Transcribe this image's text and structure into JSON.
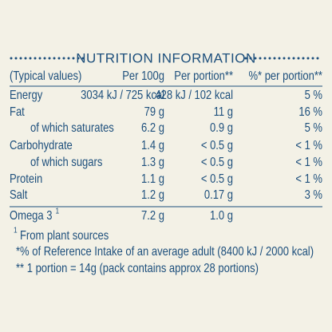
{
  "title": "NUTRITION INFORMATION",
  "table": {
    "header": [
      "(Typical values)",
      "Per 100g",
      "Per portion**",
      "%* per portion**"
    ],
    "rows": [
      [
        "Energy",
        "3034 kJ / 725 kcal",
        "428 kJ / 102 kcal",
        "5 %"
      ],
      [
        "Fat",
        "79 g",
        "11 g",
        "16 %"
      ],
      [
        "of which saturates",
        "6.2 g",
        "0.9 g",
        "5 %"
      ],
      [
        "Carbohydrate",
        "1.4 g",
        "< 0.5 g",
        "< 1 %"
      ],
      [
        "of which sugars",
        "1.3 g",
        "< 0.5 g",
        "< 1 %"
      ],
      [
        "Protein",
        "1.1 g",
        "< 0.5 g",
        "< 1 %"
      ],
      [
        "Salt",
        "1.2 g",
        "0.17 g",
        "3 %"
      ]
    ],
    "extra": {
      "label": "Omega 3",
      "superscript": "1",
      "per_100g": "7.2 g",
      "per_portion": "1.0 g"
    }
  },
  "footnotes": [
    {
      "marker": "1",
      "text": "From plant sources"
    },
    {
      "text": "*% of Reference Intake of an average adult (8400 kJ / 2000 kcal)"
    },
    {
      "text": "** 1 portion = 14g (pack contains approx 28 portions)"
    }
  ]
}
